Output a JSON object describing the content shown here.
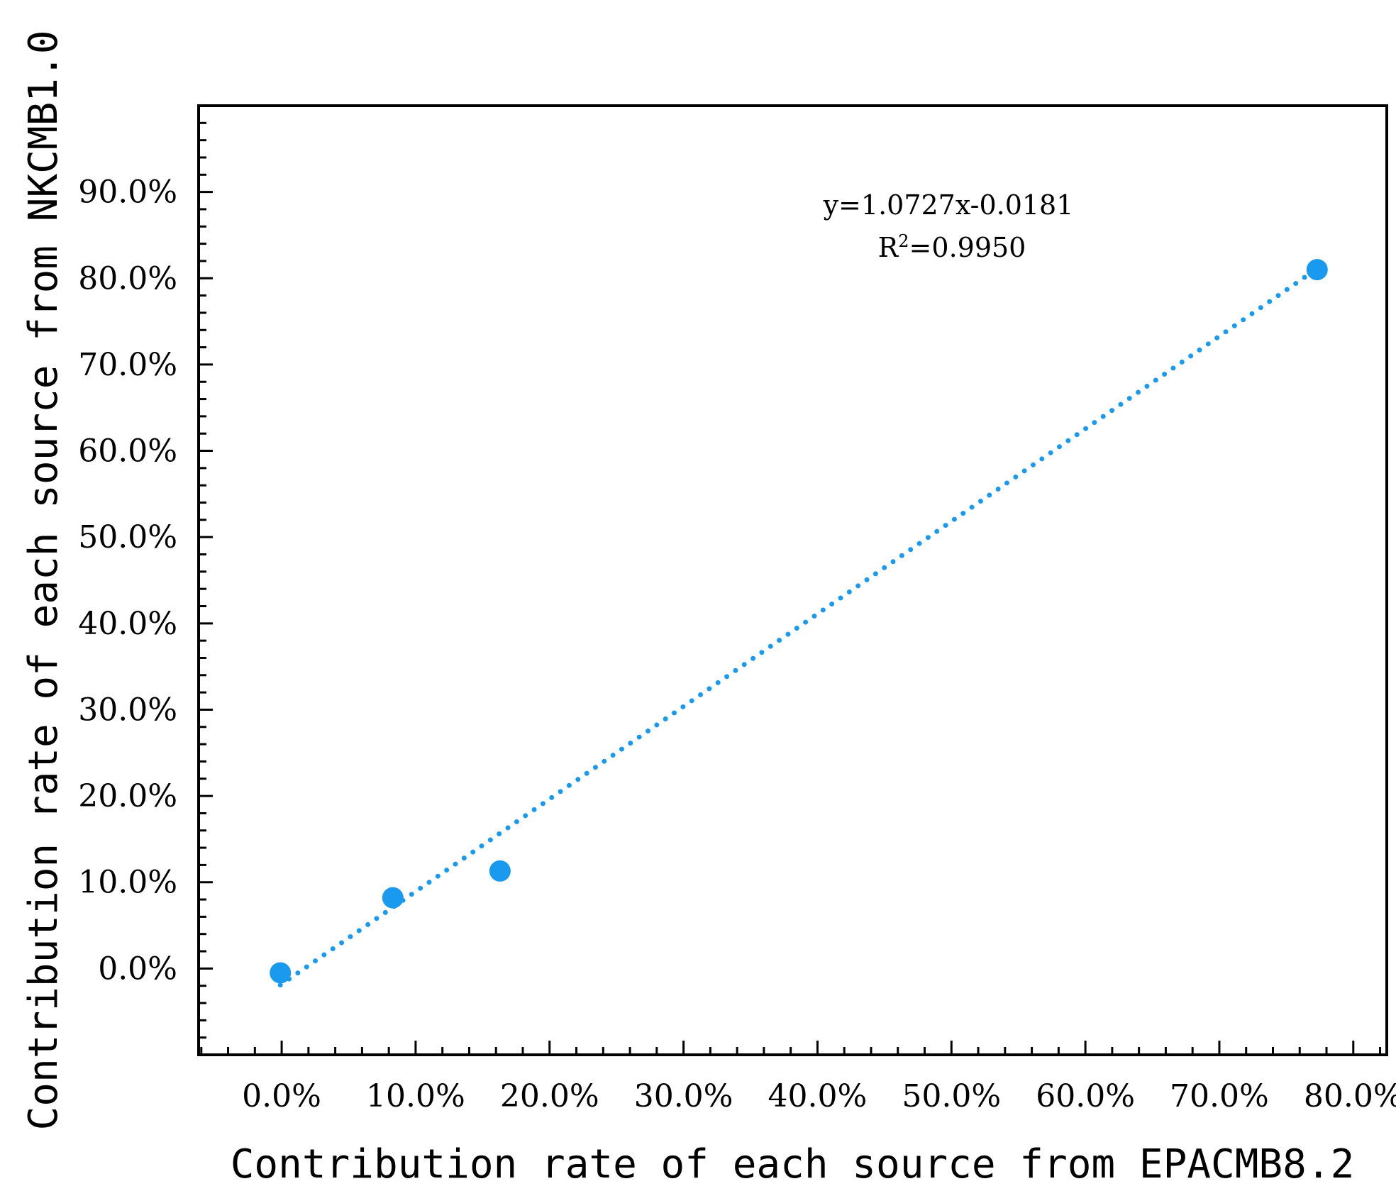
{
  "chart_data": {
    "type": "scatter",
    "title": "",
    "xlabel": "Contribution rate of each source from EPACMB8.2",
    "ylabel": "Contribution rate of each source from NKCMB1.0",
    "xlim": [
      -6.2,
      82.5
    ],
    "ylim": [
      -10,
      100
    ],
    "x_ticks": [
      0,
      10,
      20,
      30,
      40,
      50,
      60,
      70,
      80
    ],
    "y_ticks": [
      0,
      10,
      20,
      30,
      40,
      50,
      60,
      70,
      80,
      90
    ],
    "x_tick_labels": [
      "0.0%",
      "10.0%",
      "20.0%",
      "30.0%",
      "40.0%",
      "50.0%",
      "60.0%",
      "70.0%",
      "80.0%"
    ],
    "y_tick_labels": [
      "0.0%",
      "10.0%",
      "20.0%",
      "30.0%",
      "40.0%",
      "50.0%",
      "60.0%",
      "70.0%",
      "80.0%",
      "90.0%"
    ],
    "points": [
      {
        "x": -0.1,
        "y": -0.5
      },
      {
        "x": 8.3,
        "y": 8.2
      },
      {
        "x": 16.3,
        "y": 11.3
      },
      {
        "x": 77.3,
        "y": 81.0
      }
    ],
    "trendline": {
      "slope": 1.0727,
      "intercept": -1.81,
      "style": "dotted",
      "x_range": [
        -0.1,
        77.3
      ]
    },
    "annotation": {
      "equation": "y=1.0727x-0.0181",
      "r2_prefix": "R",
      "r2_sup": "2",
      "r2_value": "=0.9950"
    },
    "colors": {
      "series": "#1a9aef",
      "axis": "#000000"
    },
    "grid": false,
    "legend": "none"
  }
}
